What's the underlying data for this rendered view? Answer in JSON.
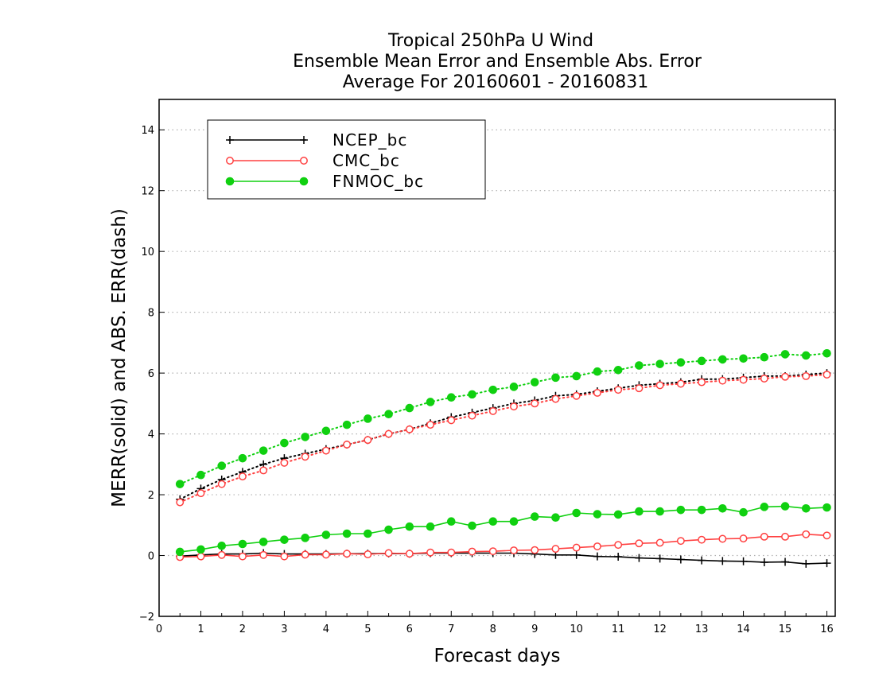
{
  "chart_data": {
    "type": "line",
    "title": [
      "Tropical 250hPa U Wind",
      "Ensemble Mean Error and Ensemble Abs. Error",
      "Average For 20160601 - 20160831"
    ],
    "xlabel": "Forecast days",
    "ylabel": "MERR(solid) and ABS. ERR(dash)",
    "xlim": [
      0,
      16.2
    ],
    "ylim": [
      -2,
      15
    ],
    "xticks": [
      0,
      1,
      2,
      3,
      4,
      5,
      6,
      7,
      8,
      9,
      10,
      11,
      12,
      13,
      14,
      15,
      16
    ],
    "yticks": [
      -2,
      0,
      2,
      4,
      6,
      8,
      10,
      12,
      14
    ],
    "grid": "horizontal dotted",
    "legend_position": "top-left",
    "x": [
      0.5,
      1.0,
      1.5,
      2.0,
      2.5,
      3.0,
      3.5,
      4.0,
      4.5,
      5.0,
      5.5,
      6.0,
      6.5,
      7.0,
      7.5,
      8.0,
      8.5,
      9.0,
      9.5,
      10.0,
      10.5,
      11.0,
      11.5,
      12.0,
      12.5,
      13.0,
      13.5,
      14.0,
      14.5,
      15.0,
      15.5,
      16.0
    ],
    "series": [
      {
        "name": "NCEP_bc",
        "color": "#000000",
        "marker": "plus",
        "mean_error": [
          -0.02,
          0.02,
          0.05,
          0.05,
          0.08,
          0.05,
          0.05,
          0.05,
          0.06,
          0.06,
          0.07,
          0.06,
          0.08,
          0.08,
          0.08,
          0.08,
          0.08,
          0.05,
          0.02,
          0.02,
          -0.03,
          -0.04,
          -0.08,
          -0.1,
          -0.13,
          -0.16,
          -0.18,
          -0.19,
          -0.22,
          -0.21,
          -0.27,
          -0.25
        ],
        "abs_error": [
          1.85,
          2.2,
          2.5,
          2.75,
          3.0,
          3.2,
          3.35,
          3.5,
          3.65,
          3.8,
          4.0,
          4.15,
          4.35,
          4.55,
          4.7,
          4.85,
          5.0,
          5.1,
          5.25,
          5.3,
          5.4,
          5.5,
          5.6,
          5.65,
          5.7,
          5.8,
          5.8,
          5.85,
          5.9,
          5.9,
          5.95,
          6.0
        ]
      },
      {
        "name": "CMC_bc",
        "color": "#ff4040",
        "marker": "open-circle",
        "mean_error": [
          -0.05,
          -0.03,
          0.02,
          -0.03,
          0.02,
          -0.03,
          0.03,
          0.03,
          0.06,
          0.04,
          0.08,
          0.06,
          0.1,
          0.1,
          0.13,
          0.14,
          0.17,
          0.18,
          0.22,
          0.26,
          0.3,
          0.35,
          0.4,
          0.42,
          0.48,
          0.52,
          0.55,
          0.56,
          0.62,
          0.62,
          0.7,
          0.66
        ],
        "abs_error": [
          1.75,
          2.05,
          2.35,
          2.6,
          2.8,
          3.05,
          3.25,
          3.45,
          3.65,
          3.8,
          4.0,
          4.15,
          4.3,
          4.45,
          4.6,
          4.75,
          4.9,
          5.0,
          5.15,
          5.25,
          5.35,
          5.45,
          5.5,
          5.6,
          5.65,
          5.7,
          5.75,
          5.78,
          5.82,
          5.88,
          5.9,
          5.95
        ]
      },
      {
        "name": "FNMOC_bc",
        "color": "#10d010",
        "marker": "filled-circle",
        "mean_error": [
          0.12,
          0.2,
          0.32,
          0.38,
          0.45,
          0.52,
          0.58,
          0.68,
          0.72,
          0.72,
          0.85,
          0.95,
          0.95,
          1.12,
          0.98,
          1.12,
          1.12,
          1.28,
          1.25,
          1.4,
          1.36,
          1.35,
          1.45,
          1.45,
          1.5,
          1.5,
          1.55,
          1.42,
          1.6,
          1.62,
          1.55,
          1.58
        ],
        "abs_error": [
          2.35,
          2.65,
          2.95,
          3.2,
          3.45,
          3.7,
          3.9,
          4.1,
          4.3,
          4.5,
          4.65,
          4.85,
          5.05,
          5.2,
          5.3,
          5.45,
          5.55,
          5.7,
          5.85,
          5.9,
          6.05,
          6.1,
          6.25,
          6.3,
          6.35,
          6.4,
          6.45,
          6.48,
          6.52,
          6.62,
          6.58,
          6.65
        ]
      }
    ]
  }
}
